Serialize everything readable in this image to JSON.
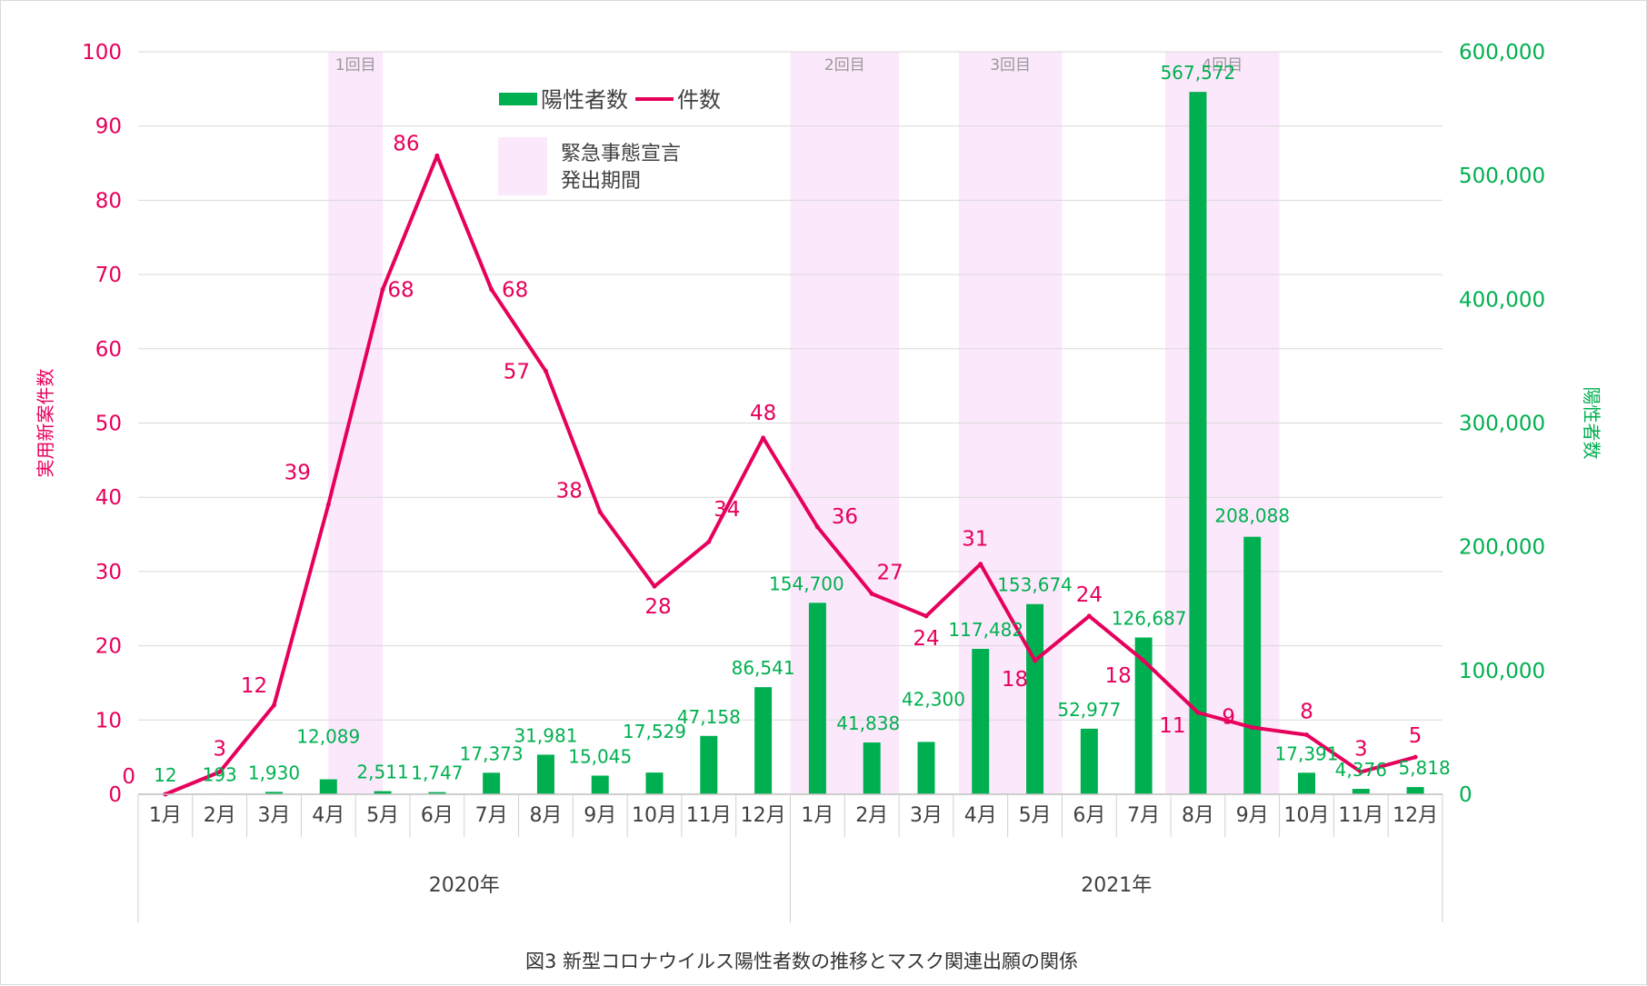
{
  "chart_data": {
    "type": "bar+line",
    "caption": "図3  新型コロナウイルス陽性者数の推移とマスク関連出願の関係",
    "categories": [
      "1月",
      "2月",
      "3月",
      "4月",
      "5月",
      "6月",
      "7月",
      "8月",
      "9月",
      "10月",
      "11月",
      "12月",
      "1月",
      "2月",
      "3月",
      "4月",
      "5月",
      "6月",
      "7月",
      "8月",
      "9月",
      "10月",
      "11月",
      "12月"
    ],
    "years": [
      {
        "label": "2020年",
        "from": 0,
        "to": 11
      },
      {
        "label": "2021年",
        "from": 12,
        "to": 23
      }
    ],
    "left_axis": {
      "label": "実用新案件数",
      "min": 0,
      "max": 100,
      "ticks": [
        "0",
        "10",
        "20",
        "30",
        "40",
        "50",
        "60",
        "70",
        "80",
        "90",
        "100"
      ],
      "color": "#e6005c"
    },
    "right_axis": {
      "label": "陽性者数",
      "min": 0,
      "max": 600000,
      "ticks": [
        "0",
        "100,000",
        "200,000",
        "300,000",
        "400,000",
        "500,000",
        "600,000"
      ],
      "color": "#00b050"
    },
    "series": [
      {
        "name": "陽性者数",
        "type": "bar",
        "axis": "right",
        "color": "#00b050",
        "values": [
          12,
          193,
          1930,
          12089,
          2511,
          1747,
          17373,
          31981,
          15045,
          17529,
          47158,
          86541,
          154700,
          41838,
          42300,
          117482,
          153674,
          52977,
          126687,
          567572,
          208088,
          17391,
          4376,
          5818
        ],
        "labels": [
          "12",
          "193",
          "1,930",
          "12,089",
          "2,511",
          "1,747",
          "17,373",
          "31,981",
          "15,045",
          "17,529",
          "47,158",
          "86,541",
          "154,700",
          "41,838",
          "42,300",
          "117,482",
          "153,674",
          "52,977",
          "126,687",
          "567,572",
          "208,088",
          "17,391",
          "4,376",
          "5,818"
        ]
      },
      {
        "name": "件数",
        "type": "line",
        "axis": "left",
        "color": "#e6005c",
        "values": [
          0,
          3,
          12,
          39,
          68,
          86,
          68,
          57,
          38,
          28,
          34,
          48,
          36,
          27,
          24,
          31,
          18,
          24,
          18,
          11,
          9,
          8,
          3,
          5
        ],
        "labels": [
          "0",
          "3",
          "12",
          "39",
          "68",
          "86",
          "68",
          "57",
          "38",
          "28",
          "34",
          "48",
          "36",
          "27",
          "24",
          "31",
          "18",
          "24",
          "18",
          "11",
          "9",
          "8",
          "3",
          "5"
        ]
      }
    ],
    "emergency_periods": [
      {
        "label": "1回目",
        "from": 3.5,
        "to": 4.5
      },
      {
        "label": "2回目",
        "from": 12,
        "to": 14
      },
      {
        "label": "3回目",
        "from": 15.1,
        "to": 17
      },
      {
        "label": "4回目",
        "from": 18.9,
        "to": 21
      }
    ],
    "legend": {
      "bar_label": "陽性者数",
      "line_label": "件数",
      "period_label_line1": "緊急事態宣言",
      "period_label_line2": "発出期間",
      "placement": "top-center"
    },
    "grid": true,
    "colors": {
      "bar": "#00b050",
      "line": "#e6005c",
      "period": "#fce8fb",
      "grid": "#d9d9d9",
      "caption": "#333333"
    }
  }
}
